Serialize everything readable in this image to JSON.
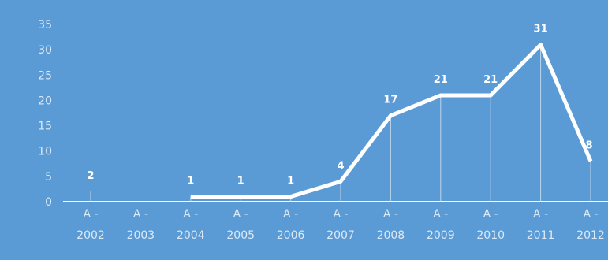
{
  "colors": {
    "plot_background": "#5b9bd5",
    "line": "#ffffff",
    "tick_text": "#dce9f7",
    "drop_lines": "#cfe0f2"
  },
  "chart_data": {
    "type": "line",
    "title": "",
    "xlabel": "",
    "ylabel": "",
    "categories": [
      [
        "A -",
        "2002"
      ],
      [
        "A -",
        "2003"
      ],
      [
        "A -",
        "2004"
      ],
      [
        "A -",
        "2005"
      ],
      [
        "A -",
        "2006"
      ],
      [
        "A -",
        "2007"
      ],
      [
        "A -",
        "2008"
      ],
      [
        "A -",
        "2009"
      ],
      [
        "A -",
        "2010"
      ],
      [
        "A -",
        "2011"
      ],
      [
        "A -",
        "2012"
      ]
    ],
    "series": [
      {
        "values": [
          2,
          null,
          1,
          1,
          1,
          4,
          17,
          21,
          21,
          31,
          8
        ]
      }
    ],
    "data_labels": [
      "2",
      "",
      "1",
      "1",
      "1",
      "4",
      "17",
      "21",
      "21",
      "31",
      "8"
    ],
    "ylim": [
      0,
      35
    ],
    "yticks": [
      "0",
      "5",
      "10",
      "15",
      "20",
      "25",
      "30",
      "35"
    ],
    "ytick_values": [
      0,
      5,
      10,
      15,
      20,
      25,
      30,
      35
    ],
    "drop_lines": true,
    "grid": false,
    "legend": "none"
  }
}
